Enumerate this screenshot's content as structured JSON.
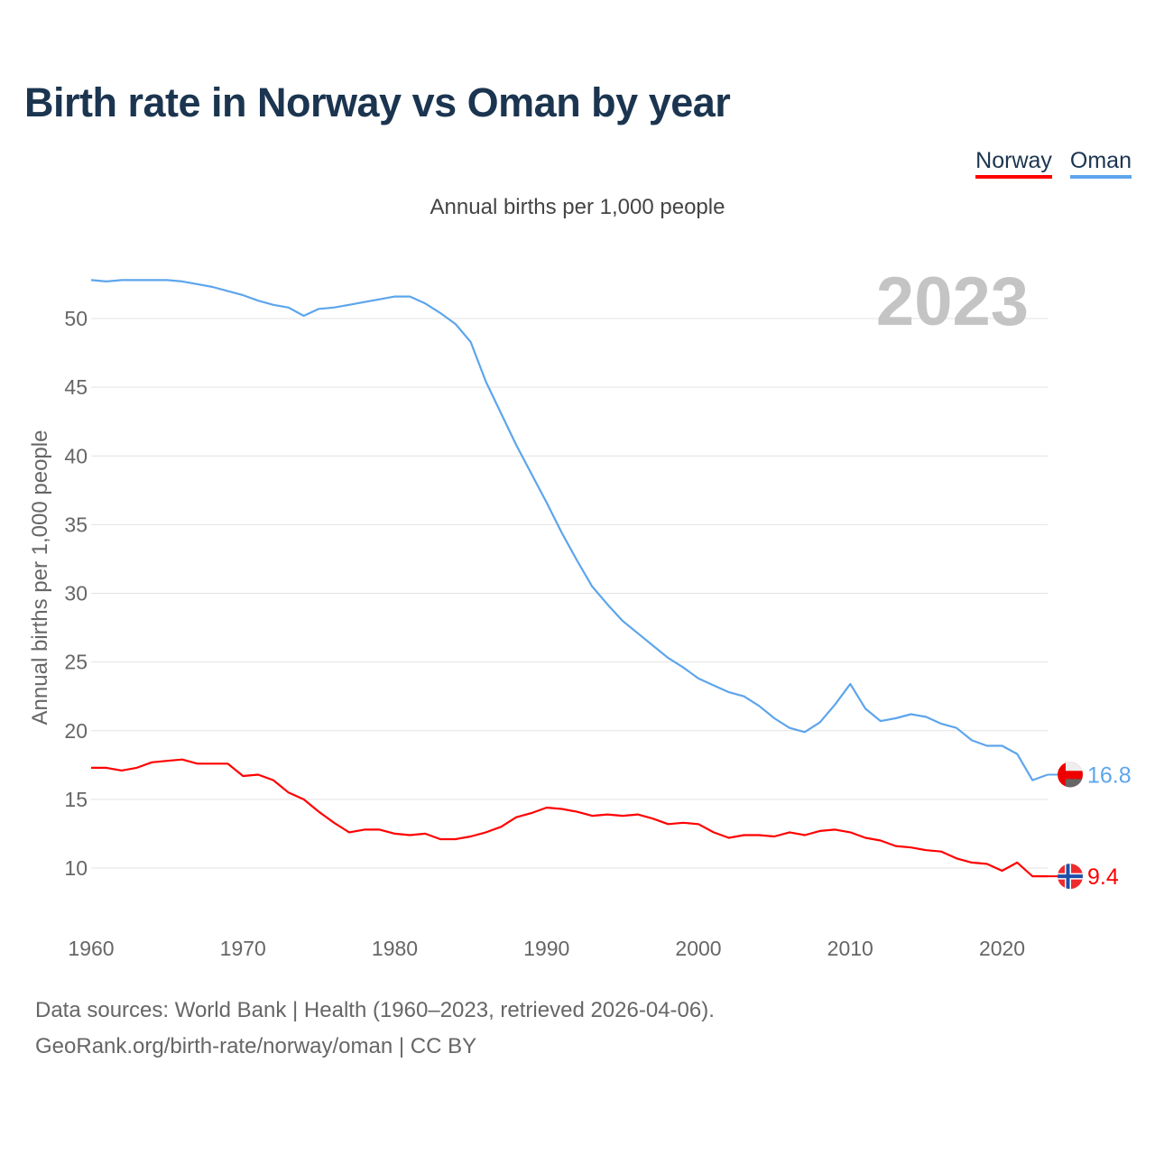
{
  "title": "Birth rate in Norway vs Oman by year",
  "legend": [
    "Norway",
    "Oman"
  ],
  "footer": {
    "line1": "Data sources: World Bank | Health (1960–2023, retrieved 2026-04-06).",
    "line2": "GeoRank.org/birth-rate/norway/oman | CC BY"
  },
  "colors": {
    "norway": "#ff0000",
    "oman": "#5da5ec",
    "year_watermark": "#c4c4c4"
  },
  "chart_data": {
    "type": "line",
    "title": "Birth rate in Norway vs Oman by year",
    "subtitle": "Annual births per 1,000 people",
    "xlabel": "",
    "ylabel": "Annual births per 1,000 people",
    "xlim": [
      1960,
      2023
    ],
    "ylim": [
      7,
      53
    ],
    "x_ticks": [
      "1960",
      "1970",
      "1980",
      "1990",
      "2000",
      "2010",
      "2020"
    ],
    "y_ticks": [
      "10",
      "15",
      "20",
      "25",
      "30",
      "35",
      "40",
      "45",
      "50"
    ],
    "grid": true,
    "legend_position": "top-right",
    "year_label": "2023",
    "x": [
      1960,
      1961,
      1962,
      1963,
      1964,
      1965,
      1966,
      1967,
      1968,
      1969,
      1970,
      1971,
      1972,
      1973,
      1974,
      1975,
      1976,
      1977,
      1978,
      1979,
      1980,
      1981,
      1982,
      1983,
      1984,
      1985,
      1986,
      1987,
      1988,
      1989,
      1990,
      1991,
      1992,
      1993,
      1994,
      1995,
      1996,
      1997,
      1998,
      1999,
      2000,
      2001,
      2002,
      2003,
      2004,
      2005,
      2006,
      2007,
      2008,
      2009,
      2010,
      2011,
      2012,
      2013,
      2014,
      2015,
      2016,
      2017,
      2018,
      2019,
      2020,
      2021,
      2022,
      2023
    ],
    "series": [
      {
        "name": "Norway",
        "end_label": "9.4",
        "values": [
          17.3,
          17.3,
          17.1,
          17.3,
          17.7,
          17.8,
          17.9,
          17.6,
          17.6,
          17.6,
          16.7,
          16.8,
          16.4,
          15.5,
          15.0,
          14.1,
          13.3,
          12.6,
          12.8,
          12.8,
          12.5,
          12.4,
          12.5,
          12.1,
          12.1,
          12.3,
          12.6,
          13.0,
          13.7,
          14.0,
          14.4,
          14.3,
          14.1,
          13.8,
          13.9,
          13.8,
          13.9,
          13.6,
          13.2,
          13.3,
          13.2,
          12.6,
          12.2,
          12.4,
          12.4,
          12.3,
          12.6,
          12.4,
          12.7,
          12.8,
          12.6,
          12.2,
          12.0,
          11.6,
          11.5,
          11.3,
          11.2,
          10.7,
          10.4,
          10.3,
          9.8,
          10.4,
          9.4,
          9.4
        ]
      },
      {
        "name": "Oman",
        "end_label": "16.8",
        "values": [
          52.8,
          52.7,
          52.8,
          52.8,
          52.8,
          52.8,
          52.7,
          52.5,
          52.3,
          52.0,
          51.7,
          51.3,
          51.0,
          50.8,
          50.2,
          50.7,
          50.8,
          51.0,
          51.2,
          51.4,
          51.6,
          51.6,
          51.1,
          50.4,
          49.6,
          48.3,
          45.4,
          43.1,
          40.8,
          38.7,
          36.6,
          34.4,
          32.4,
          30.5,
          29.2,
          28.0,
          27.1,
          26.2,
          25.3,
          24.6,
          23.8,
          23.3,
          22.8,
          22.5,
          21.8,
          20.9,
          20.2,
          19.9,
          20.6,
          21.9,
          23.4,
          21.6,
          20.7,
          20.9,
          21.2,
          21.0,
          20.5,
          20.2,
          19.3,
          18.9,
          18.9,
          18.3,
          16.4,
          16.8
        ]
      }
    ]
  }
}
